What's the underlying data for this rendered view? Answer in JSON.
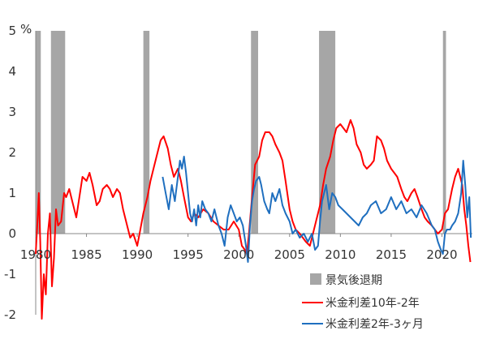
{
  "chart_data": {
    "type": "line",
    "y_unit": "%",
    "ylim": [
      -2,
      5
    ],
    "y_ticks": [
      "-2",
      "-1",
      "0",
      "1",
      "2",
      "3",
      "4",
      "5"
    ],
    "y_tick_values": [
      -2,
      -1,
      0,
      1,
      2,
      3,
      4,
      5
    ],
    "xlim": [
      1980,
      2023
    ],
    "x_ticks": [
      "1980",
      "1985",
      "1990",
      "1995",
      "2000",
      "2005",
      "2010",
      "2015",
      "2020"
    ],
    "x_tick_values": [
      1980,
      1985,
      1990,
      1995,
      2000,
      2005,
      2010,
      2015,
      2020
    ],
    "grid": false,
    "legend_position": "bottom-right",
    "recessions": {
      "name": "景気後退期",
      "color": "#a6a6a6",
      "periods": [
        [
          1980.0,
          1980.5
        ],
        [
          1981.5,
          1982.9
        ],
        [
          1990.6,
          1991.2
        ],
        [
          2001.2,
          2001.9
        ],
        [
          2007.9,
          2009.5
        ],
        [
          2020.1,
          2020.4
        ]
      ]
    },
    "series": [
      {
        "name": "米金利差10年-2年",
        "color": "#ff0000",
        "x": [
          1980.0,
          1980.15,
          1980.3,
          1980.45,
          1980.6,
          1980.8,
          1981.0,
          1981.2,
          1981.4,
          1981.6,
          1981.8,
          1982.0,
          1982.2,
          1982.5,
          1982.8,
          1983.0,
          1983.3,
          1983.6,
          1984.0,
          1984.3,
          1984.6,
          1985.0,
          1985.3,
          1985.6,
          1986.0,
          1986.3,
          1986.6,
          1987.0,
          1987.3,
          1987.6,
          1988.0,
          1988.3,
          1988.6,
          1989.0,
          1989.3,
          1989.6,
          1990.0,
          1990.3,
          1990.6,
          1991.0,
          1991.3,
          1991.6,
          1992.0,
          1992.3,
          1992.6,
          1993.0,
          1993.3,
          1993.6,
          1994.0,
          1994.3,
          1994.6,
          1995.0,
          1995.3,
          1995.6,
          1996.0,
          1996.5,
          1997.0,
          1997.5,
          1998.0,
          1998.5,
          1999.0,
          1999.5,
          2000.0,
          2000.3,
          2000.6,
          2000.8,
          2001.0,
          2001.3,
          2001.6,
          2002.0,
          2002.3,
          2002.6,
          2003.0,
          2003.3,
          2003.6,
          2004.0,
          2004.3,
          2004.6,
          2005.0,
          2005.3,
          2005.6,
          2006.0,
          2006.3,
          2006.6,
          2007.0,
          2007.3,
          2007.6,
          2008.0,
          2008.3,
          2008.6,
          2009.0,
          2009.3,
          2009.6,
          2010.0,
          2010.3,
          2010.6,
          2011.0,
          2011.3,
          2011.6,
          2012.0,
          2012.3,
          2012.6,
          2013.0,
          2013.3,
          2013.6,
          2014.0,
          2014.3,
          2014.6,
          2015.0,
          2015.3,
          2015.6,
          2016.0,
          2016.3,
          2016.6,
          2017.0,
          2017.3,
          2017.6,
          2018.0,
          2018.3,
          2018.6,
          2019.0,
          2019.3,
          2019.6,
          2020.0,
          2020.3,
          2020.6,
          2021.0,
          2021.3,
          2021.6,
          2022.0,
          2022.2,
          2022.4,
          2022.6,
          2022.8
        ],
        "values": [
          -0.5,
          0.2,
          1.0,
          -0.2,
          -2.1,
          -1.0,
          -1.5,
          0.0,
          0.5,
          -1.3,
          -0.6,
          0.6,
          0.2,
          0.3,
          1.0,
          0.9,
          1.1,
          0.8,
          0.4,
          0.9,
          1.4,
          1.3,
          1.5,
          1.2,
          0.7,
          0.8,
          1.1,
          1.2,
          1.1,
          0.9,
          1.1,
          1.0,
          0.6,
          0.2,
          -0.1,
          0.0,
          -0.3,
          0.1,
          0.5,
          0.9,
          1.3,
          1.6,
          2.0,
          2.3,
          2.4,
          2.1,
          1.7,
          1.4,
          1.6,
          1.3,
          0.9,
          0.4,
          0.3,
          0.5,
          0.4,
          0.6,
          0.5,
          0.3,
          0.2,
          0.1,
          0.1,
          0.3,
          0.1,
          -0.3,
          -0.4,
          -0.5,
          0.0,
          0.9,
          1.7,
          1.9,
          2.3,
          2.5,
          2.5,
          2.4,
          2.2,
          2.0,
          1.8,
          1.3,
          0.6,
          0.3,
          0.1,
          0.0,
          -0.1,
          -0.2,
          -0.3,
          0.0,
          0.3,
          0.7,
          1.2,
          1.6,
          1.9,
          2.3,
          2.6,
          2.7,
          2.6,
          2.5,
          2.8,
          2.6,
          2.2,
          2.0,
          1.7,
          1.6,
          1.7,
          1.8,
          2.4,
          2.3,
          2.1,
          1.8,
          1.6,
          1.5,
          1.4,
          1.1,
          0.9,
          0.8,
          1.0,
          1.1,
          0.9,
          0.6,
          0.4,
          0.3,
          0.2,
          0.1,
          0.0,
          0.1,
          0.5,
          0.6,
          1.1,
          1.4,
          1.6,
          1.2,
          0.6,
          0.2,
          -0.3,
          -0.7
        ],
        "values_end": null
      },
      {
        "name": "米金利差2年-3ヶ月",
        "color": "#1f6fbf",
        "x": [
          1992.5,
          1992.8,
          1993.1,
          1993.4,
          1993.7,
          1994.0,
          1994.2,
          1994.4,
          1994.6,
          1994.8,
          1995.0,
          1995.2,
          1995.4,
          1995.6,
          1995.8,
          1996.0,
          1996.2,
          1996.4,
          1996.7,
          1997.0,
          1997.3,
          1997.6,
          1998.0,
          1998.3,
          1998.6,
          1998.9,
          1999.2,
          1999.5,
          1999.8,
          2000.1,
          2000.4,
          2000.7,
          2000.9,
          2001.1,
          2001.3,
          2001.5,
          2001.7,
          2002.0,
          2002.2,
          2002.5,
          2002.8,
          2003.0,
          2003.3,
          2003.6,
          2004.0,
          2004.3,
          2004.6,
          2005.0,
          2005.3,
          2005.6,
          2006.0,
          2006.4,
          2006.8,
          2007.2,
          2007.5,
          2007.8,
          2008.0,
          2008.2,
          2008.4,
          2008.6,
          2008.9,
          2009.2,
          2009.5,
          2009.8,
          2010.2,
          2010.6,
          2011.0,
          2011.4,
          2011.8,
          2012.2,
          2012.6,
          2013.0,
          2013.5,
          2014.0,
          2014.5,
          2015.0,
          2015.5,
          2016.0,
          2016.5,
          2017.0,
          2017.5,
          2018.0,
          2018.5,
          2019.0,
          2019.3,
          2019.6,
          2019.9,
          2020.1,
          2020.3,
          2020.5,
          2020.8,
          2021.0,
          2021.3,
          2021.6,
          2021.9,
          2022.1,
          2022.3,
          2022.5,
          2022.7,
          2022.85
        ],
        "values": [
          1.4,
          1.0,
          0.6,
          1.2,
          0.8,
          1.4,
          1.8,
          1.6,
          1.9,
          1.5,
          1.0,
          0.5,
          0.3,
          0.6,
          0.2,
          0.7,
          0.4,
          0.8,
          0.6,
          0.5,
          0.3,
          0.6,
          0.2,
          0.0,
          -0.3,
          0.4,
          0.7,
          0.5,
          0.3,
          0.4,
          0.2,
          -0.3,
          -0.7,
          0.2,
          0.8,
          1.1,
          1.3,
          1.4,
          1.2,
          0.8,
          0.6,
          0.5,
          1.0,
          0.8,
          1.1,
          0.7,
          0.5,
          0.3,
          0.0,
          0.1,
          -0.1,
          0.0,
          -0.2,
          0.0,
          -0.4,
          -0.3,
          0.3,
          0.8,
          1.0,
          1.2,
          0.6,
          1.0,
          0.9,
          0.7,
          0.6,
          0.5,
          0.4,
          0.3,
          0.2,
          0.4,
          0.5,
          0.7,
          0.8,
          0.5,
          0.6,
          0.9,
          0.6,
          0.8,
          0.5,
          0.6,
          0.4,
          0.7,
          0.5,
          0.2,
          0.1,
          -0.2,
          -0.4,
          -0.5,
          0.0,
          0.1,
          0.1,
          0.2,
          0.3,
          0.5,
          1.0,
          1.8,
          1.2,
          0.4,
          0.9,
          -0.1
        ]
      }
    ]
  }
}
